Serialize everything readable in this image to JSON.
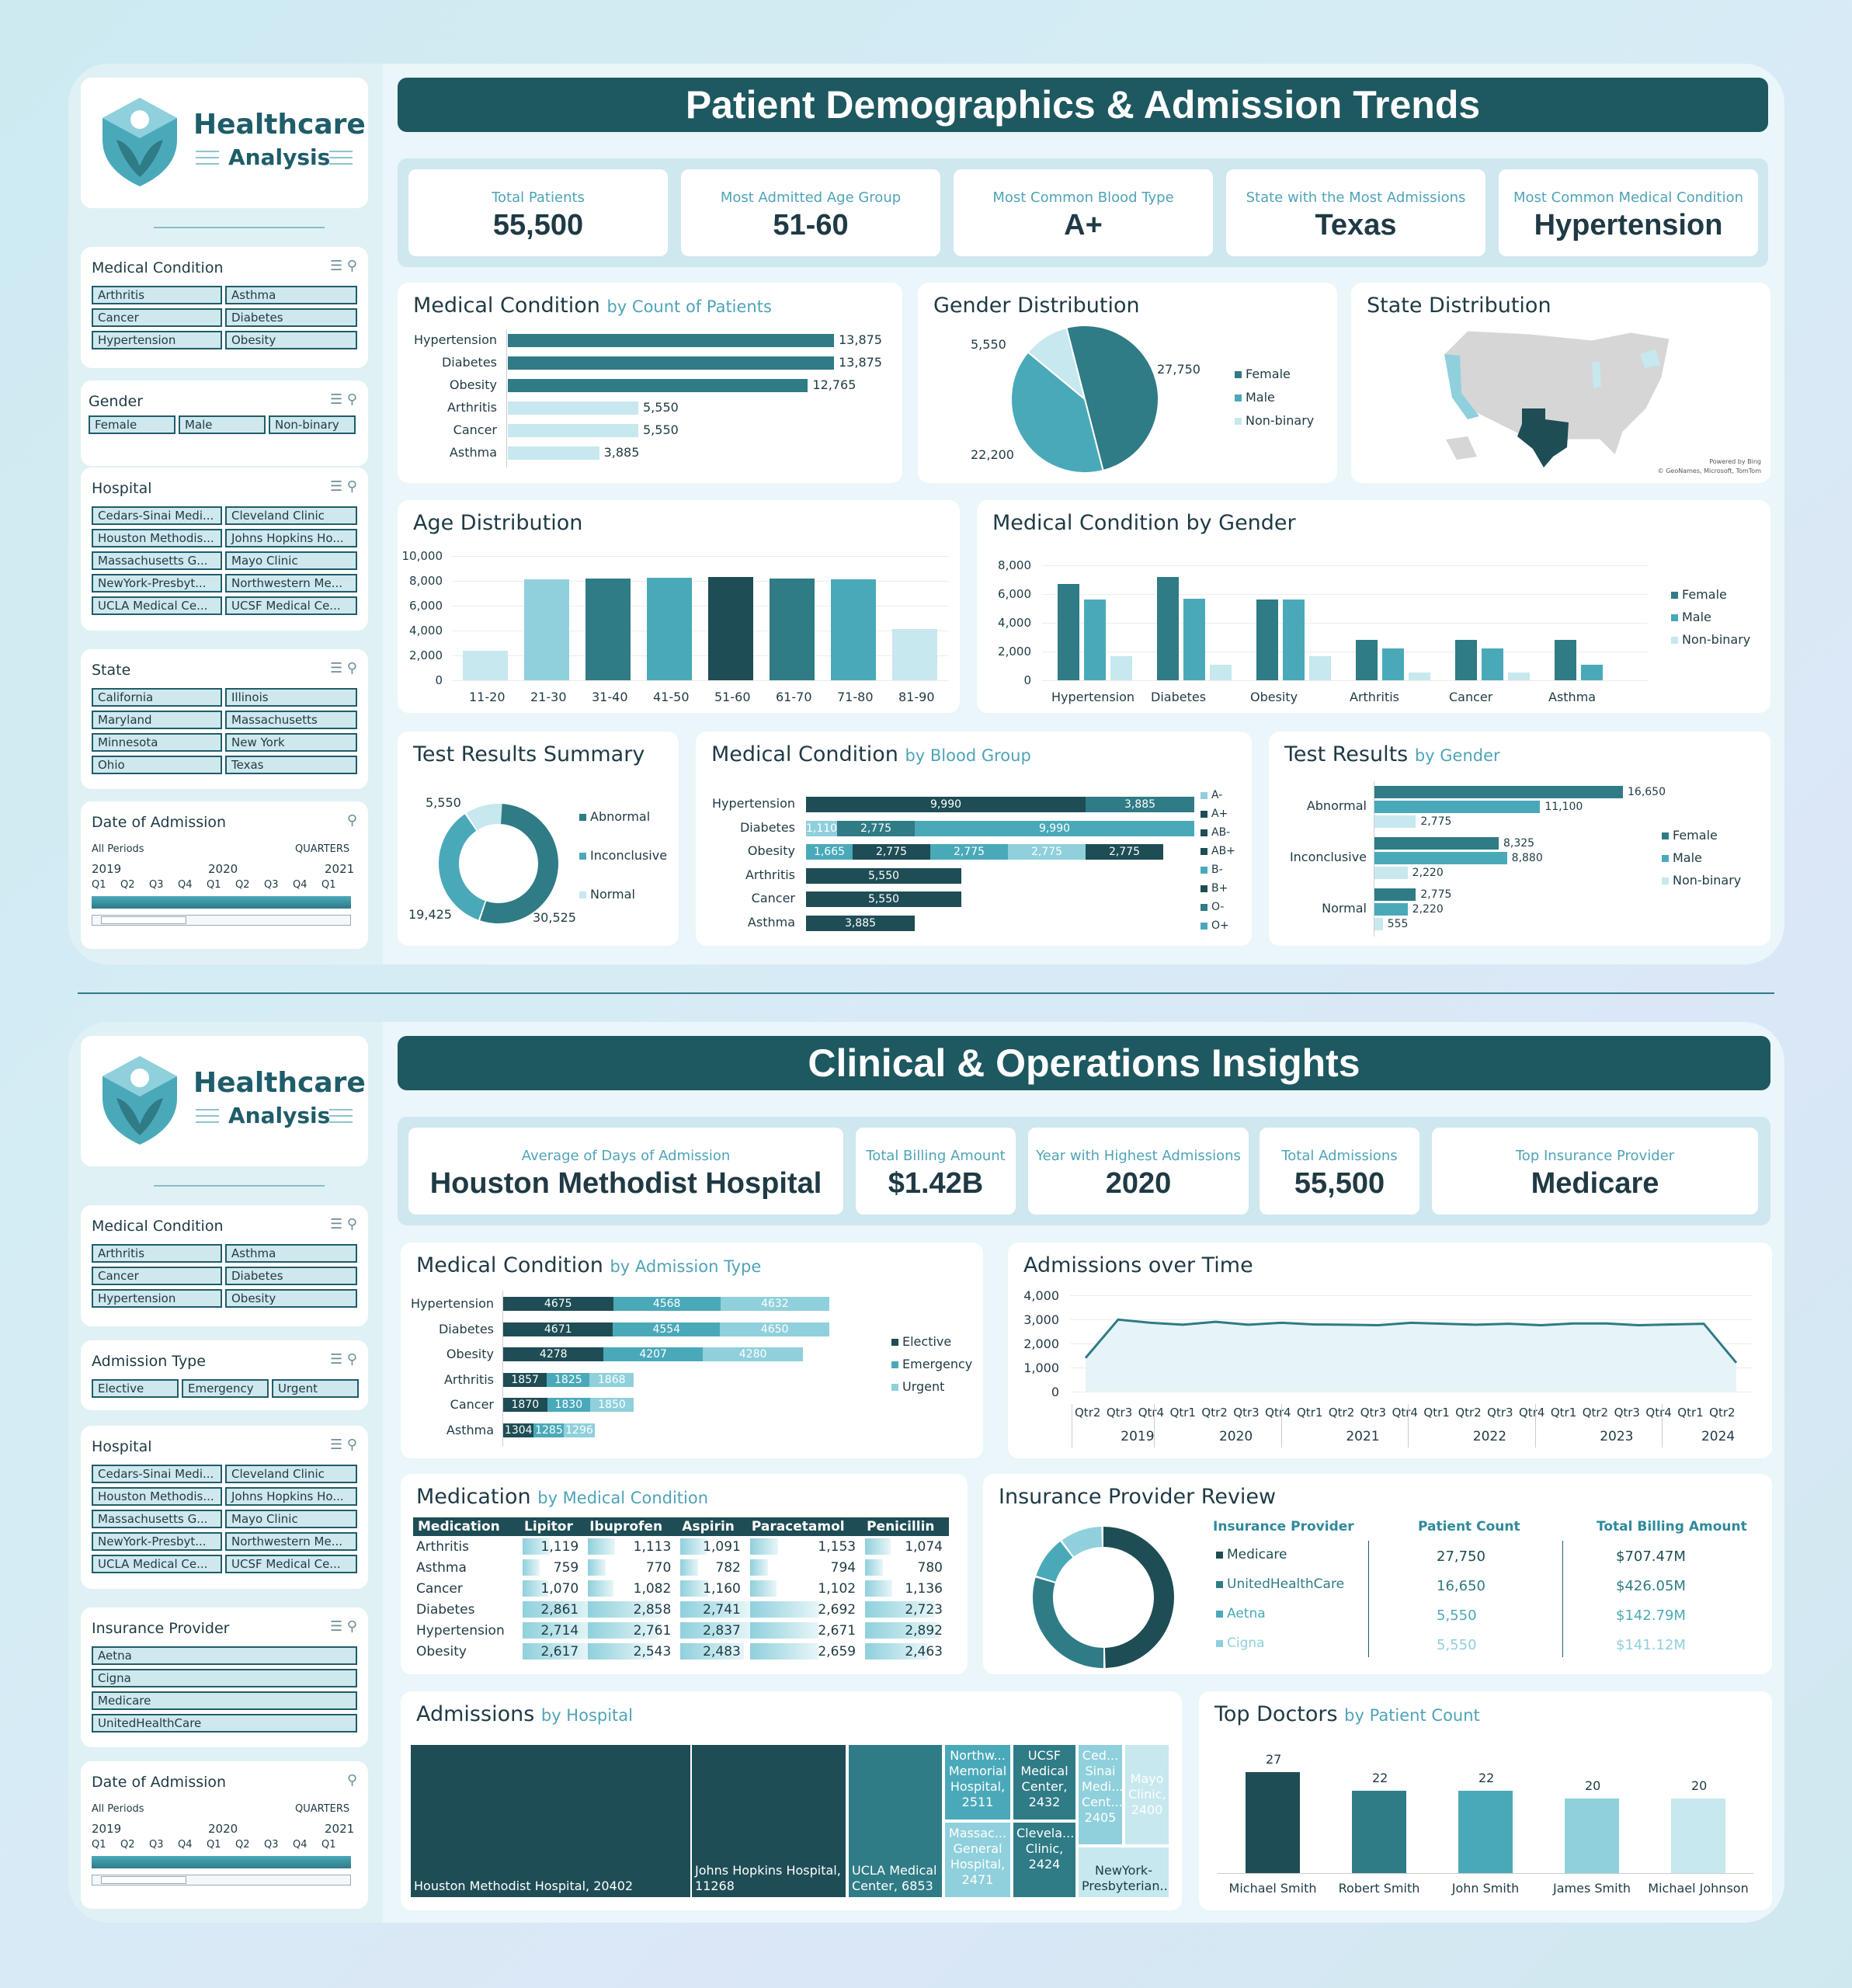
{
  "dash1": {
    "title": "Patient Demographics & Admission Trends",
    "kpis": [
      {
        "label": "Total Patients",
        "value": "55,500"
      },
      {
        "label": "Most Admitted Age Group",
        "value": "51-60"
      },
      {
        "label": "Most Common Blood Type",
        "value": "A+"
      },
      {
        "label": "State with the Most Admissions",
        "value": "Texas"
      },
      {
        "label": "Most Common Medical Condition",
        "value": "Hypertension"
      }
    ],
    "medcond": {
      "title": "Medical Condition",
      "sub": "by Count of Patients",
      "rows": [
        [
          "Hypertension",
          "13,875"
        ],
        [
          "Diabetes",
          "13,875"
        ],
        [
          "Obesity",
          "12,765"
        ],
        [
          "Arthritis",
          "5,550"
        ],
        [
          "Cancer",
          "5,550"
        ],
        [
          "Asthma",
          "3,885"
        ]
      ]
    },
    "gender": {
      "title": "Gender Distribution",
      "labels": [
        "27,750",
        "22,200",
        "5,550"
      ],
      "legend": [
        "Female",
        "Male",
        "Non-binary"
      ]
    },
    "state": {
      "title": "State Distribution",
      "credit1": "Powered by Bing",
      "credit2": "© GeoNames, Microsoft, TomTom"
    },
    "age": {
      "title": "Age Distribution",
      "yticks": [
        "10,000",
        "8,000",
        "6,000",
        "4,000",
        "2,000",
        "0"
      ],
      "cats": [
        "11-20",
        "21-30",
        "31-40",
        "41-50",
        "51-60",
        "61-70",
        "71-80",
        "81-90"
      ]
    },
    "mcg": {
      "title": "Medical Condition by Gender",
      "yticks": [
        "8,000",
        "6,000",
        "4,000",
        "2,000",
        "0"
      ],
      "cats": [
        "Hypertension",
        "Diabetes",
        "Obesity",
        "Arthritis",
        "Cancer",
        "Asthma"
      ],
      "legend": [
        "Female",
        "Male",
        "Non-binary"
      ]
    },
    "tests": {
      "title": "Test Results Summary",
      "labels": [
        "5,550",
        "19,425",
        "30,525"
      ],
      "legend": [
        "Abnormal",
        "Inconclusive",
        "Normal"
      ]
    },
    "blood": {
      "title": "Medical Condition",
      "sub": "by Blood Group",
      "cats": [
        "Hypertension",
        "Diabetes",
        "Obesity",
        "Arthritis",
        "Cancer",
        "Asthma"
      ],
      "legend": [
        "A-",
        "A+",
        "AB-",
        "AB+",
        "B-",
        "B+",
        "O-",
        "O+"
      ],
      "segs": [
        [
          "9,990",
          "3,885"
        ],
        [
          "1,110",
          "2,775",
          "9,990"
        ],
        [
          "1,665",
          "2,775",
          "2,775",
          "2,775",
          "2,775"
        ],
        [
          "5,550"
        ],
        [
          "5,550"
        ],
        [
          "3,885"
        ]
      ]
    },
    "tbg": {
      "title": "Test Results",
      "sub": "by Gender",
      "cats": [
        "Abnormal",
        "Inconclusive",
        "Normal"
      ],
      "legend": [
        "Female",
        "Male",
        "Non-binary"
      ],
      "labels": [
        [
          "16,650",
          "11,100",
          "2,775"
        ],
        [
          "8,325",
          "8,880",
          "2,220"
        ],
        [
          "2,775",
          "2,220",
          "555"
        ]
      ]
    }
  },
  "sidebar1": {
    "logo_title": "Healthcare",
    "logo_sub": "Analysis",
    "medcond": {
      "title": "Medical Condition",
      "items": [
        "Arthritis",
        "Asthma",
        "Cancer",
        "Diabetes",
        "Hypertension",
        "Obesity"
      ]
    },
    "gender": {
      "title": "Gender",
      "items": [
        "Female",
        "Male",
        "Non-binary"
      ]
    },
    "hospital": {
      "title": "Hospital",
      "items": [
        "Cedars-Sinai Medi...",
        "Cleveland Clinic",
        "Houston Methodis...",
        "Johns Hopkins Ho...",
        "Massachusetts G...",
        "Mayo Clinic",
        "NewYork-Presbyt...",
        "Northwestern Me...",
        "UCLA Medical Ce...",
        "UCSF Medical Ce..."
      ]
    },
    "state": {
      "title": "State",
      "items": [
        "California",
        "Illinois",
        "Maryland",
        "Massachusetts",
        "Minnesota",
        "New York",
        "Ohio",
        "Texas"
      ]
    },
    "date": {
      "title": "Date of Admission",
      "periods": "All Periods",
      "quarters": "QUARTERS",
      "years": [
        "2019",
        "2020",
        "2021"
      ],
      "qs": [
        "Q1",
        "Q2",
        "Q3",
        "Q4",
        "Q1",
        "Q2",
        "Q3",
        "Q4",
        "Q1"
      ]
    }
  },
  "dash2": {
    "title": "Clinical & Operations Insights",
    "kpis": [
      {
        "label": "Average of Days of Admission",
        "value": "Houston Methodist Hospital"
      },
      {
        "label": "Total Billing Amount",
        "value": "$1.42B"
      },
      {
        "label": "Year with Highest Admissions",
        "value": "2020"
      },
      {
        "label": "Total Admissions",
        "value": "55,500"
      },
      {
        "label": "Top Insurance Provider",
        "value": "Medicare"
      }
    ],
    "adm": {
      "title": "Medical Condition",
      "sub": "by Admission Type",
      "cats": [
        "Hypertension",
        "Diabetes",
        "Obesity",
        "Arthritis",
        "Cancer",
        "Asthma"
      ],
      "legend": [
        "Elective",
        "Emergency",
        "Urgent"
      ],
      "values": [
        [
          4675,
          4568,
          4632
        ],
        [
          4671,
          4554,
          4650
        ],
        [
          4278,
          4207,
          4280
        ],
        [
          1857,
          1825,
          1868
        ],
        [
          1870,
          1830,
          1850
        ],
        [
          1304,
          1285,
          1296
        ]
      ]
    },
    "aot": {
      "title": "Admissions over Time",
      "yticks": [
        "4,000",
        "3,000",
        "2,000",
        "1,000",
        "0"
      ],
      "qtrs": [
        "Qtr2",
        "Qtr3",
        "Qtr4",
        "Qtr1",
        "Qtr2",
        "Qtr3",
        "Qtr4",
        "Qtr1",
        "Qtr2",
        "Qtr3",
        "Qtr4",
        "Qtr1",
        "Qtr2",
        "Qtr3",
        "Qtr4",
        "Qtr1",
        "Qtr2",
        "Qtr3",
        "Qtr4",
        "Qtr1",
        "Qtr2"
      ],
      "years": [
        "2019",
        "2020",
        "2021",
        "2022",
        "2023",
        "2024"
      ]
    },
    "med": {
      "title": "Medication",
      "sub": "by Medical Condition",
      "headers": [
        "Medication",
        "Lipitor",
        "Ibuprofen",
        "Aspirin",
        "Paracetamol",
        "Penicillin"
      ],
      "rows": [
        [
          "Arthritis",
          "1,119",
          "1,113",
          "1,091",
          "1,153",
          "1,074"
        ],
        [
          "Asthma",
          "759",
          "770",
          "782",
          "794",
          "780"
        ],
        [
          "Cancer",
          "1,070",
          "1,082",
          "1,160",
          "1,102",
          "1,136"
        ],
        [
          "Diabetes",
          "2,861",
          "2,858",
          "2,741",
          "2,692",
          "2,723"
        ],
        [
          "Hypertension",
          "2,714",
          "2,761",
          "2,837",
          "2,671",
          "2,892"
        ],
        [
          "Obesity",
          "2,617",
          "2,543",
          "2,483",
          "2,659",
          "2,463"
        ]
      ]
    },
    "ins": {
      "title": "Insurance Provider Review",
      "headers": [
        "Insurance Provider",
        "Patient Count",
        "Total Billing Amount"
      ],
      "rows": [
        [
          "Medicare",
          "27,750",
          "$707.47M"
        ],
        [
          "UnitedHealthCare",
          "16,650",
          "$426.05M"
        ],
        [
          "Aetna",
          "5,550",
          "$142.79M"
        ],
        [
          "Cigna",
          "5,550",
          "$141.12M"
        ]
      ]
    },
    "hosp": {
      "title": "Admissions",
      "sub": "by Hospital",
      "tiles": [
        "Houston Methodist Hospital, 20402",
        "Johns Hopkins Hospital, 11268",
        "UCLA Medical Center, 6853",
        "Northw... Memorial Hospital, 2511",
        "UCSF Medical Center, 2432",
        "Ced... Sinai Medi... Cent... 2405",
        "Mayo Clinic, 2400",
        "Massac... General Hospital, 2471",
        "Clevela... Clinic, 2424",
        "NewYork-Presbyterian..."
      ]
    },
    "docs": {
      "title": "Top Doctors",
      "sub": "by Patient Count",
      "names": [
        "Michael Smith",
        "Robert Smith",
        "John Smith",
        "James Smith",
        "Michael Johnson"
      ],
      "values": [
        27,
        22,
        22,
        20,
        20
      ]
    }
  },
  "sidebar2": {
    "logo_title": "Healthcare",
    "logo_sub": "Analysis",
    "medcond": {
      "title": "Medical Condition",
      "items": [
        "Arthritis",
        "Asthma",
        "Cancer",
        "Diabetes",
        "Hypertension",
        "Obesity"
      ]
    },
    "admtype": {
      "title": "Admission Type",
      "items": [
        "Elective",
        "Emergency",
        "Urgent"
      ]
    },
    "hospital": {
      "title": "Hospital",
      "items": [
        "Cedars-Sinai Medi...",
        "Cleveland Clinic",
        "Houston Methodis...",
        "Johns Hopkins Ho...",
        "Massachusetts G...",
        "Mayo Clinic",
        "NewYork-Presbyt...",
        "Northwestern Me...",
        "UCLA Medical Ce...",
        "UCSF Medical Ce..."
      ]
    },
    "insurance": {
      "title": "Insurance Provider",
      "items": [
        "Aetna",
        "Cigna",
        "Medicare",
        "UnitedHealthCare"
      ]
    },
    "date": {
      "title": "Date of Admission",
      "periods": "All Periods",
      "quarters": "QUARTERS",
      "years": [
        "2019",
        "2020",
        "2021"
      ],
      "qs": [
        "Q1",
        "Q2",
        "Q3",
        "Q4",
        "Q1",
        "Q2",
        "Q3",
        "Q4",
        "Q1"
      ]
    }
  },
  "colors": {
    "dark": "#1e4d55",
    "mid": "#2f7b86",
    "teal": "#4aa9b9",
    "light": "#8fd0dc",
    "pale": "#c6e8ee"
  }
}
